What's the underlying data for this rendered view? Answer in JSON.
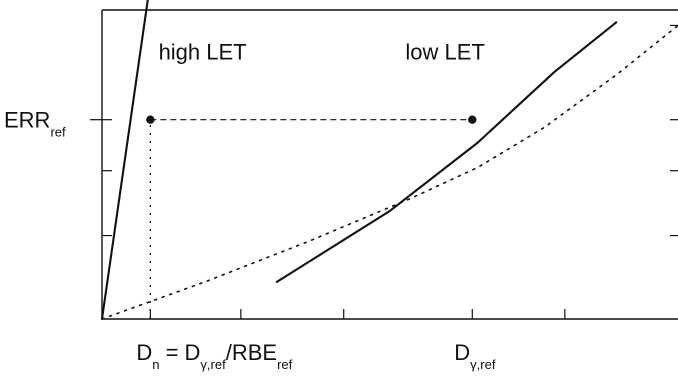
{
  "chart_data": {
    "type": "line",
    "series": [
      {
        "style": "solid",
        "color": "#111111",
        "x": [
          0.0,
          0.5
        ],
        "y": [
          0.0,
          1.16
        ]
      },
      {
        "style": "solid",
        "color": "#111111",
        "x": [
          1.7,
          2.8,
          3.65,
          4.4,
          5.0
        ],
        "y": [
          0.12,
          0.35,
          0.57,
          0.8,
          0.96
        ]
      },
      {
        "style": "dotted",
        "color": "#111111",
        "x": [
          0.0,
          1.0,
          2.0,
          3.0,
          3.65,
          4.3,
          5.0,
          5.6
        ],
        "y": [
          0.0,
          0.12,
          0.25,
          0.39,
          0.49,
          0.62,
          0.79,
          0.95
        ]
      }
    ],
    "reference": {
      "y": 0.645,
      "points": [
        {
          "x": 0.47,
          "y": 0.645
        },
        {
          "x": 3.6,
          "y": 0.645
        }
      ],
      "lines": [
        {
          "from": {
            "x": 0.47,
            "y": 0.645
          },
          "to": {
            "x": 3.6,
            "y": 0.645
          },
          "style": "dashed"
        },
        {
          "from": {
            "x": 0.47,
            "y": 0.0
          },
          "to": {
            "x": 0.47,
            "y": 0.645
          },
          "style": "dotted"
        }
      ]
    },
    "annotations": [
      {
        "text": "high LET",
        "x": 0.55,
        "y": 0.84
      },
      {
        "text": "low LET",
        "x": 2.95,
        "y": 0.84
      }
    ],
    "x_tick_labels": {
      "Dn": {
        "x": 0.47,
        "text": "D",
        "subscript": "n",
        "tail": " = D",
        "subscript2": "γ,ref",
        "tail2": "/RBE",
        "subscript3": "ref"
      },
      "Dgamma": {
        "x": 3.6,
        "text": "D",
        "subscript": "γ,ref"
      }
    },
    "y_tick_labels": {
      "ERR": {
        "y": 0.645,
        "text": "ERR",
        "subscript": "ref"
      }
    },
    "x_ticks": [
      0.47,
      1.35,
      2.35,
      3.6,
      4.5
    ],
    "y_ticks": [
      0.645,
      0.48,
      0.27
    ],
    "y_ticks_right": [
      0.95,
      0.645,
      0.48,
      0.27
    ],
    "xlim": [
      0.0,
      5.6
    ],
    "ylim": [
      0.0,
      1.0
    ],
    "title": "",
    "xlabel": "",
    "ylabel": "",
    "grid": false
  }
}
